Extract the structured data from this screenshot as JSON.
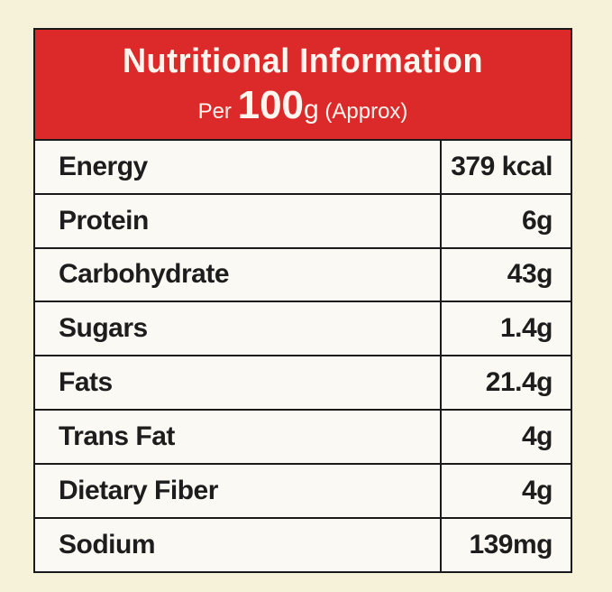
{
  "header": {
    "title": "Nutritional Information",
    "subtitle": {
      "per": "Per",
      "amount": "100",
      "unit": "g",
      "note": "(Approx)"
    }
  },
  "table": {
    "rows": [
      [
        "Energy",
        "379 kcal"
      ],
      [
        "Protein",
        "6g"
      ],
      [
        "Carbohydrate",
        "43g"
      ],
      [
        "Sugars",
        "1.4g"
      ],
      [
        "Fats",
        "21.4g"
      ],
      [
        "Trans Fat",
        "4g"
      ],
      [
        "Dietary Fiber",
        "4g"
      ],
      [
        "Sodium",
        "139mg"
      ]
    ]
  }
}
